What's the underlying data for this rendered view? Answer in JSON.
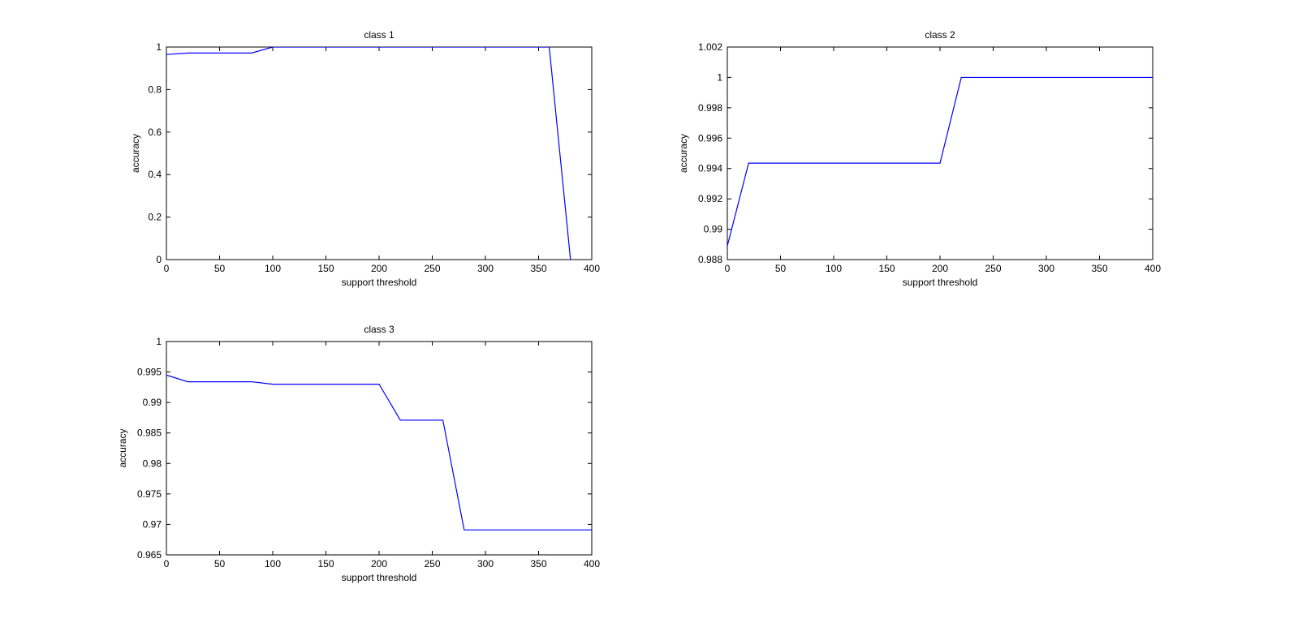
{
  "figure": {
    "background": "#ffffff",
    "axes_color": "#000000",
    "line_color": "#0000ff"
  },
  "chart_data": [
    {
      "type": "line",
      "title": "class 1",
      "xlabel": "support threshold",
      "ylabel": "accuracy",
      "xlim": [
        0,
        400
      ],
      "ylim": [
        0,
        1
      ],
      "xticks": [
        0,
        50,
        100,
        150,
        200,
        250,
        300,
        350,
        400
      ],
      "yticks": [
        0,
        0.2,
        0.4,
        0.6,
        0.8,
        1
      ],
      "xtick_labels": [
        "0",
        "50",
        "100",
        "150",
        "200",
        "250",
        "300",
        "350",
        "400"
      ],
      "ytick_labels": [
        "0",
        "0.2",
        "0.4",
        "0.6",
        "0.8",
        "1"
      ],
      "grid": false,
      "series": [
        {
          "x": [
            0,
            20,
            40,
            60,
            80,
            100,
            120,
            140,
            160,
            180,
            200,
            220,
            240,
            260,
            280,
            300,
            320,
            340,
            360,
            380
          ],
          "y": [
            0.965,
            0.972,
            0.972,
            0.972,
            0.972,
            1,
            1,
            1,
            1,
            1,
            1,
            1,
            1,
            1,
            1,
            1,
            1,
            1,
            1,
            0
          ]
        }
      ]
    },
    {
      "type": "line",
      "title": "class 2",
      "xlabel": "support threshold",
      "ylabel": "accuracy",
      "xlim": [
        0,
        400
      ],
      "ylim": [
        0.988,
        1.002
      ],
      "xticks": [
        0,
        50,
        100,
        150,
        200,
        250,
        300,
        350,
        400
      ],
      "yticks": [
        0.988,
        0.99,
        0.992,
        0.994,
        0.996,
        0.998,
        1,
        1.002
      ],
      "xtick_labels": [
        "0",
        "50",
        "100",
        "150",
        "200",
        "250",
        "300",
        "350",
        "400"
      ],
      "ytick_labels": [
        "0.988",
        "0.99",
        "0.992",
        "0.994",
        "0.996",
        "0.998",
        "1",
        "1.002"
      ],
      "grid": false,
      "series": [
        {
          "x": [
            0,
            20,
            40,
            60,
            80,
            100,
            120,
            140,
            160,
            180,
            200,
            220,
            240,
            260,
            280,
            300,
            320,
            340,
            360,
            380,
            400
          ],
          "y": [
            0.9889,
            0.99435,
            0.99435,
            0.99435,
            0.99435,
            0.99435,
            0.99435,
            0.99435,
            0.99435,
            0.99435,
            0.99435,
            1,
            1,
            1,
            1,
            1,
            1,
            1,
            1,
            1,
            1
          ]
        }
      ]
    },
    {
      "type": "line",
      "title": "class 3",
      "xlabel": "support threshold",
      "ylabel": "accuracy",
      "xlim": [
        0,
        400
      ],
      "ylim": [
        0.965,
        1
      ],
      "xticks": [
        0,
        50,
        100,
        150,
        200,
        250,
        300,
        350,
        400
      ],
      "yticks": [
        0.965,
        0.97,
        0.975,
        0.98,
        0.985,
        0.99,
        0.995,
        1
      ],
      "xtick_labels": [
        "0",
        "50",
        "100",
        "150",
        "200",
        "250",
        "300",
        "350",
        "400"
      ],
      "ytick_labels": [
        "0.965",
        "0.97",
        "0.975",
        "0.98",
        "0.985",
        "0.99",
        "0.995",
        "1"
      ],
      "grid": false,
      "series": [
        {
          "x": [
            0,
            20,
            40,
            60,
            80,
            100,
            120,
            140,
            160,
            180,
            200,
            220,
            240,
            260,
            280,
            300,
            320,
            340,
            360,
            380,
            400
          ],
          "y": [
            0.9945,
            0.9934,
            0.9934,
            0.9934,
            0.9934,
            0.993,
            0.993,
            0.993,
            0.993,
            0.993,
            0.993,
            0.9871,
            0.9871,
            0.9871,
            0.9691,
            0.9691,
            0.9691,
            0.9691,
            0.9691,
            0.9691,
            0.9691
          ]
        }
      ]
    }
  ]
}
